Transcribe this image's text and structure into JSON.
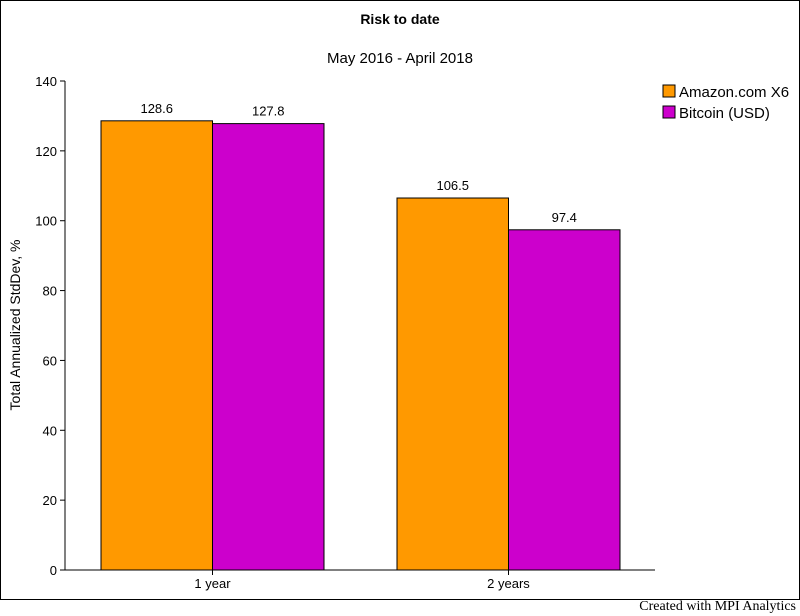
{
  "chart_data": {
    "type": "bar",
    "title": "Risk to date",
    "subtitle": "May 2016 - April 2018",
    "ylabel": "Total Annualized StdDev, %",
    "xlabel": "",
    "categories": [
      "1 year",
      "2 years"
    ],
    "series": [
      {
        "name": "Amazon.com X6",
        "color": "#ff9900",
        "values": [
          128.6,
          106.5
        ],
        "labels": [
          "128.6",
          "106.5"
        ]
      },
      {
        "name": "Bitcoin (USD)",
        "color": "#cc00cc",
        "values": [
          127.8,
          97.4
        ],
        "labels": [
          "127.8",
          "97.4"
        ]
      }
    ],
    "ylim": [
      0,
      140
    ],
    "yticks": [
      0,
      20,
      40,
      60,
      80,
      100,
      120,
      140
    ],
    "grid": false,
    "legend_position": "top-right"
  },
  "footer": {
    "credit": "Created with MPI Analytics"
  }
}
